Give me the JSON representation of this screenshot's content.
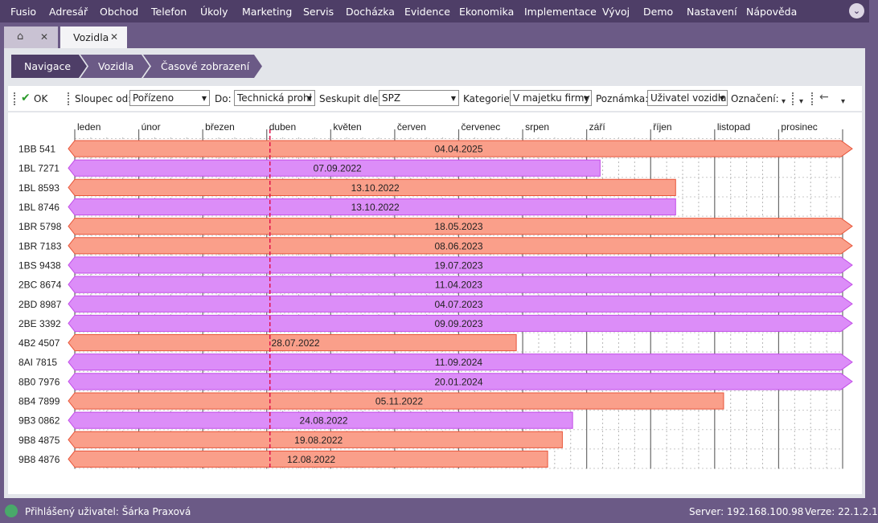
{
  "menu": [
    "Fusio",
    "Adresář",
    "Obchod",
    "Telefon",
    "Úkoly",
    "Marketing",
    "Servis",
    "Docházka",
    "Evidence",
    "Ekonomika",
    "Implementace",
    "Vývoj",
    "Demo",
    "Nastavení",
    "Nápověda"
  ],
  "menu_button_icon": "chevron-down-icon",
  "tabs": {
    "home_icon": "home-icon",
    "home_close": "✕",
    "active_label": "Vozidla",
    "active_close": "✕"
  },
  "breadcrumb": [
    "Navigace",
    "Vozidla",
    "Časové zobrazení"
  ],
  "toolbar": {
    "ok_label": "OK",
    "ok_icon": "checkmark-icon",
    "sloupec_label": "Sloupec od:",
    "sloupec_value": "Pořízeno",
    "do_label": "Do:",
    "do_value": "Technická prohl",
    "seskupit_label": "Seskupit dle:",
    "seskupit_value": "SPZ",
    "kategorie_label": "Kategorie:",
    "kategorie_value": "V majetku firmy",
    "poznamka_label": "Poznámka:",
    "poznamka_value": "Uživatel vozidla",
    "oznaceni_label": "Označení:",
    "back_icon": "arrow-left-icon"
  },
  "timeline": {
    "months": [
      "leden",
      "únor",
      "březen",
      "duben",
      "květen",
      "červen",
      "červenec",
      "srpen",
      "září",
      "říjen",
      "listopad",
      "prosinec"
    ],
    "today_marker": {
      "month_fraction": 3.05,
      "color": "#e0124a"
    },
    "colors": {
      "salmon": "#fa9f8a",
      "salmon_border": "#e8553a",
      "violet": "#dc8df8",
      "violet_border": "#c24de8"
    },
    "rows": [
      {
        "label": "1BB 541",
        "date": "04.04.2025",
        "end": 12,
        "color": "salmon",
        "arrow_left": true,
        "arrow_right": true
      },
      {
        "label": "1BL 7271",
        "date": "07.09.2022",
        "end": 8.21,
        "color": "violet",
        "arrow_left": true,
        "arrow_right": false
      },
      {
        "label": "1BL 8593",
        "date": "13.10.2022",
        "end": 9.39,
        "color": "salmon",
        "arrow_left": true,
        "arrow_right": false
      },
      {
        "label": "1BL 8746",
        "date": "13.10.2022",
        "end": 9.39,
        "color": "violet",
        "arrow_left": true,
        "arrow_right": false
      },
      {
        "label": "1BR 5798",
        "date": "18.05.2023",
        "end": 12,
        "color": "salmon",
        "arrow_left": true,
        "arrow_right": true
      },
      {
        "label": "1BR 7183",
        "date": "08.06.2023",
        "end": 12,
        "color": "salmon",
        "arrow_left": true,
        "arrow_right": true
      },
      {
        "label": "1BS 9438",
        "date": "19.07.2023",
        "end": 12,
        "color": "violet",
        "arrow_left": true,
        "arrow_right": true
      },
      {
        "label": "2BC 8674",
        "date": "11.04.2023",
        "end": 12,
        "color": "violet",
        "arrow_left": true,
        "arrow_right": true
      },
      {
        "label": "2BD 8987",
        "date": "04.07.2023",
        "end": 12,
        "color": "violet",
        "arrow_left": true,
        "arrow_right": true
      },
      {
        "label": "2BE 3392",
        "date": "09.09.2023",
        "end": 12,
        "color": "violet",
        "arrow_left": true,
        "arrow_right": true
      },
      {
        "label": "4B2 4507",
        "date": "28.07.2022",
        "end": 6.9,
        "color": "salmon",
        "arrow_left": true,
        "arrow_right": false
      },
      {
        "label": "8AI 7815",
        "date": "11.09.2024",
        "end": 12,
        "color": "violet",
        "arrow_left": true,
        "arrow_right": true
      },
      {
        "label": "8B0 7976",
        "date": "20.01.2024",
        "end": 12,
        "color": "violet",
        "arrow_left": true,
        "arrow_right": true
      },
      {
        "label": "8B4 7899",
        "date": "05.11.2022",
        "end": 10.14,
        "color": "salmon",
        "arrow_left": true,
        "arrow_right": false
      },
      {
        "label": "9B3 0862",
        "date": "24.08.2022",
        "end": 7.78,
        "color": "violet",
        "arrow_left": true,
        "arrow_right": false
      },
      {
        "label": "9B8 4875",
        "date": "19.08.2022",
        "end": 7.62,
        "color": "salmon",
        "arrow_left": true,
        "arrow_right": false
      },
      {
        "label": "9B8 4876",
        "date": "12.08.2022",
        "end": 7.39,
        "color": "salmon",
        "arrow_left": true,
        "arrow_right": false
      }
    ]
  },
  "status": {
    "user_icon": "user-icon",
    "user_text": "Přihlášený uživatel: Šárka Praxová",
    "server_text": "Server: 192.168.100.98",
    "version_text": "Verze: 22.1.2.1"
  }
}
